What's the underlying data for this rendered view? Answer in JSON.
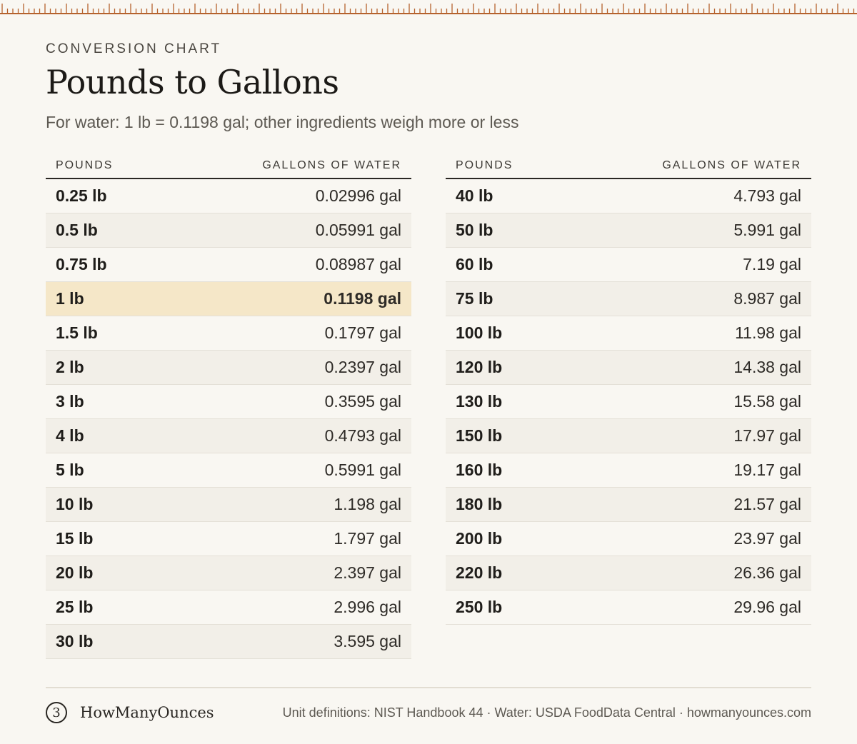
{
  "header": {
    "eyebrow": "CONVERSION CHART",
    "title": "Pounds to Gallons",
    "subtitle": "For water: 1 lb = 0.1198 gal; other ingredients weigh more or less"
  },
  "columns": {
    "pounds": "POUNDS",
    "gallons": "GALLONS OF WATER"
  },
  "left_rows": [
    {
      "lb": "0.25 lb",
      "gal": "0.02996 gal"
    },
    {
      "lb": "0.5 lb",
      "gal": "0.05991 gal"
    },
    {
      "lb": "0.75 lb",
      "gal": "0.08987 gal"
    },
    {
      "lb": "1 lb",
      "gal": "0.1198 gal",
      "highlight": true
    },
    {
      "lb": "1.5 lb",
      "gal": "0.1797 gal"
    },
    {
      "lb": "2 lb",
      "gal": "0.2397 gal"
    },
    {
      "lb": "3 lb",
      "gal": "0.3595 gal"
    },
    {
      "lb": "4 lb",
      "gal": "0.4793 gal"
    },
    {
      "lb": "5 lb",
      "gal": "0.5991 gal"
    },
    {
      "lb": "10 lb",
      "gal": "1.198 gal"
    },
    {
      "lb": "15 lb",
      "gal": "1.797 gal"
    },
    {
      "lb": "20 lb",
      "gal": "2.397 gal"
    },
    {
      "lb": "25 lb",
      "gal": "2.996 gal"
    },
    {
      "lb": "30 lb",
      "gal": "3.595 gal"
    }
  ],
  "right_rows": [
    {
      "lb": "40 lb",
      "gal": "4.793 gal"
    },
    {
      "lb": "50 lb",
      "gal": "5.991 gal"
    },
    {
      "lb": "60 lb",
      "gal": "7.19 gal"
    },
    {
      "lb": "75 lb",
      "gal": "8.987 gal"
    },
    {
      "lb": "100 lb",
      "gal": "11.98 gal"
    },
    {
      "lb": "120 lb",
      "gal": "14.38 gal"
    },
    {
      "lb": "130 lb",
      "gal": "15.58 gal"
    },
    {
      "lb": "150 lb",
      "gal": "17.97 gal"
    },
    {
      "lb": "160 lb",
      "gal": "19.17 gal"
    },
    {
      "lb": "180 lb",
      "gal": "21.57 gal"
    },
    {
      "lb": "200 lb",
      "gal": "23.97 gal"
    },
    {
      "lb": "220 lb",
      "gal": "26.36 gal"
    },
    {
      "lb": "250 lb",
      "gal": "29.96 gal"
    }
  ],
  "footer": {
    "logo_glyph": "3",
    "brand": "HowManyOunces",
    "sources": "Unit definitions: NIST Handbook 44 · Water: USDA FoodData Central · howmanyounces.com"
  },
  "colors": {
    "background": "#f9f7f2",
    "ruler": "#b5622d",
    "highlight": "#f5e7c8",
    "stripe": "#f2efe8"
  }
}
